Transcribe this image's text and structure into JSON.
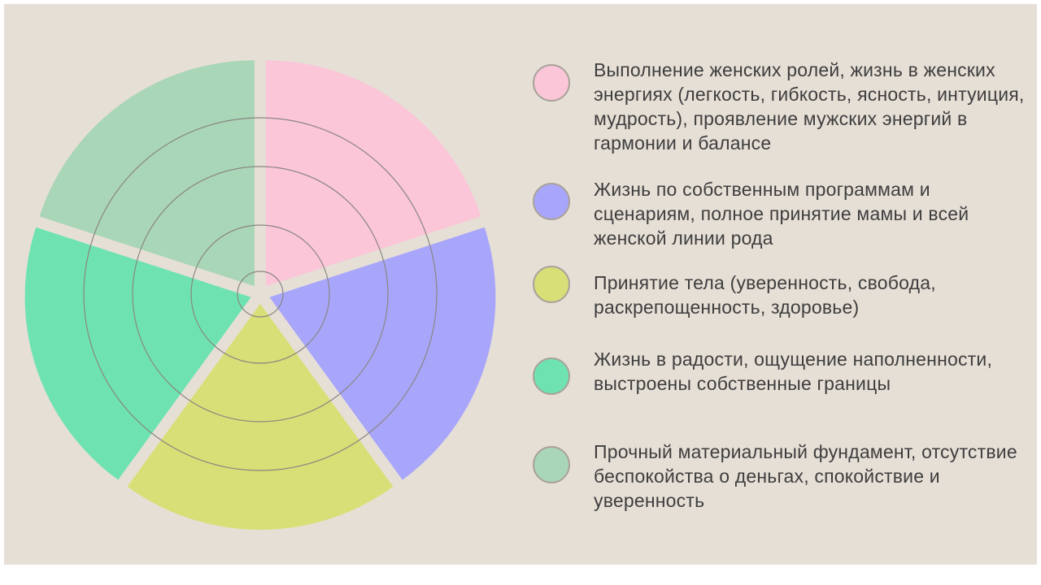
{
  "segments": [
    {
      "name": "segment-pink",
      "color": "#fbc6d8",
      "label": "Выполнение женских ролей, жизнь в женских энергиях (легкость, гибкость, ясность, интуиция, мудрость), проявление мужских энергий в гармонии и балансе"
    },
    {
      "name": "segment-blue",
      "color": "#a8a6fb",
      "label": "Жизнь по собственным программам и сценариям, полное принятие мамы и всей женской линии рода"
    },
    {
      "name": "segment-yellow",
      "color": "#d8df76",
      "label": "Принятие тела (уверенность, свобода, раскрепощенность, здоровье)"
    },
    {
      "name": "segment-green",
      "color": "#6ee3b1",
      "label": "Жизнь в радости, ощущение наполненности, выстроены собственные границы"
    },
    {
      "name": "segment-sage",
      "color": "#a9d6b6",
      "label": "Прочный материальный фундамент, отсутствие беспокойства о деньгах, спокойствие и уверенность"
    }
  ],
  "colors": {
    "background": "#e6dfd6",
    "ring_stroke": "#8a8682",
    "dot_border": "#a9a29a",
    "text": "#3e3e3e"
  }
}
